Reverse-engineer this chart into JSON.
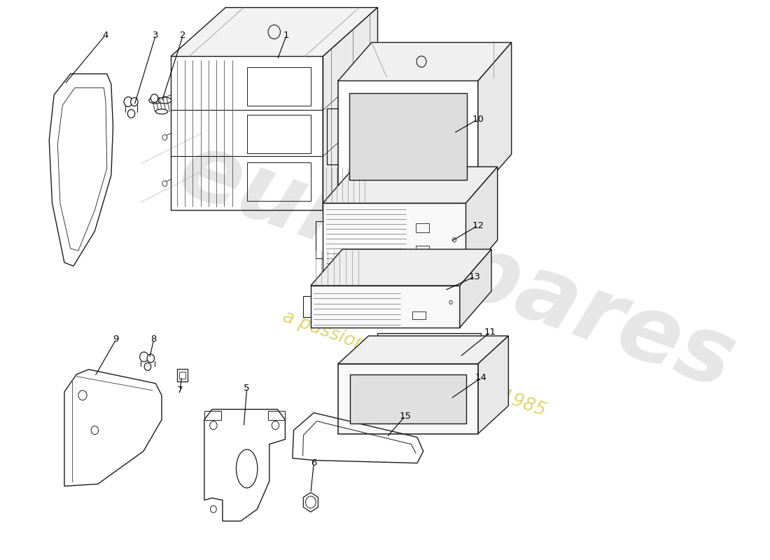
{
  "background_color": "#ffffff",
  "line_color": "#1a1a1a",
  "watermark_color": "#c8c8c8",
  "watermark_yellow": "#d4c840",
  "label_fontsize": 9.5
}
